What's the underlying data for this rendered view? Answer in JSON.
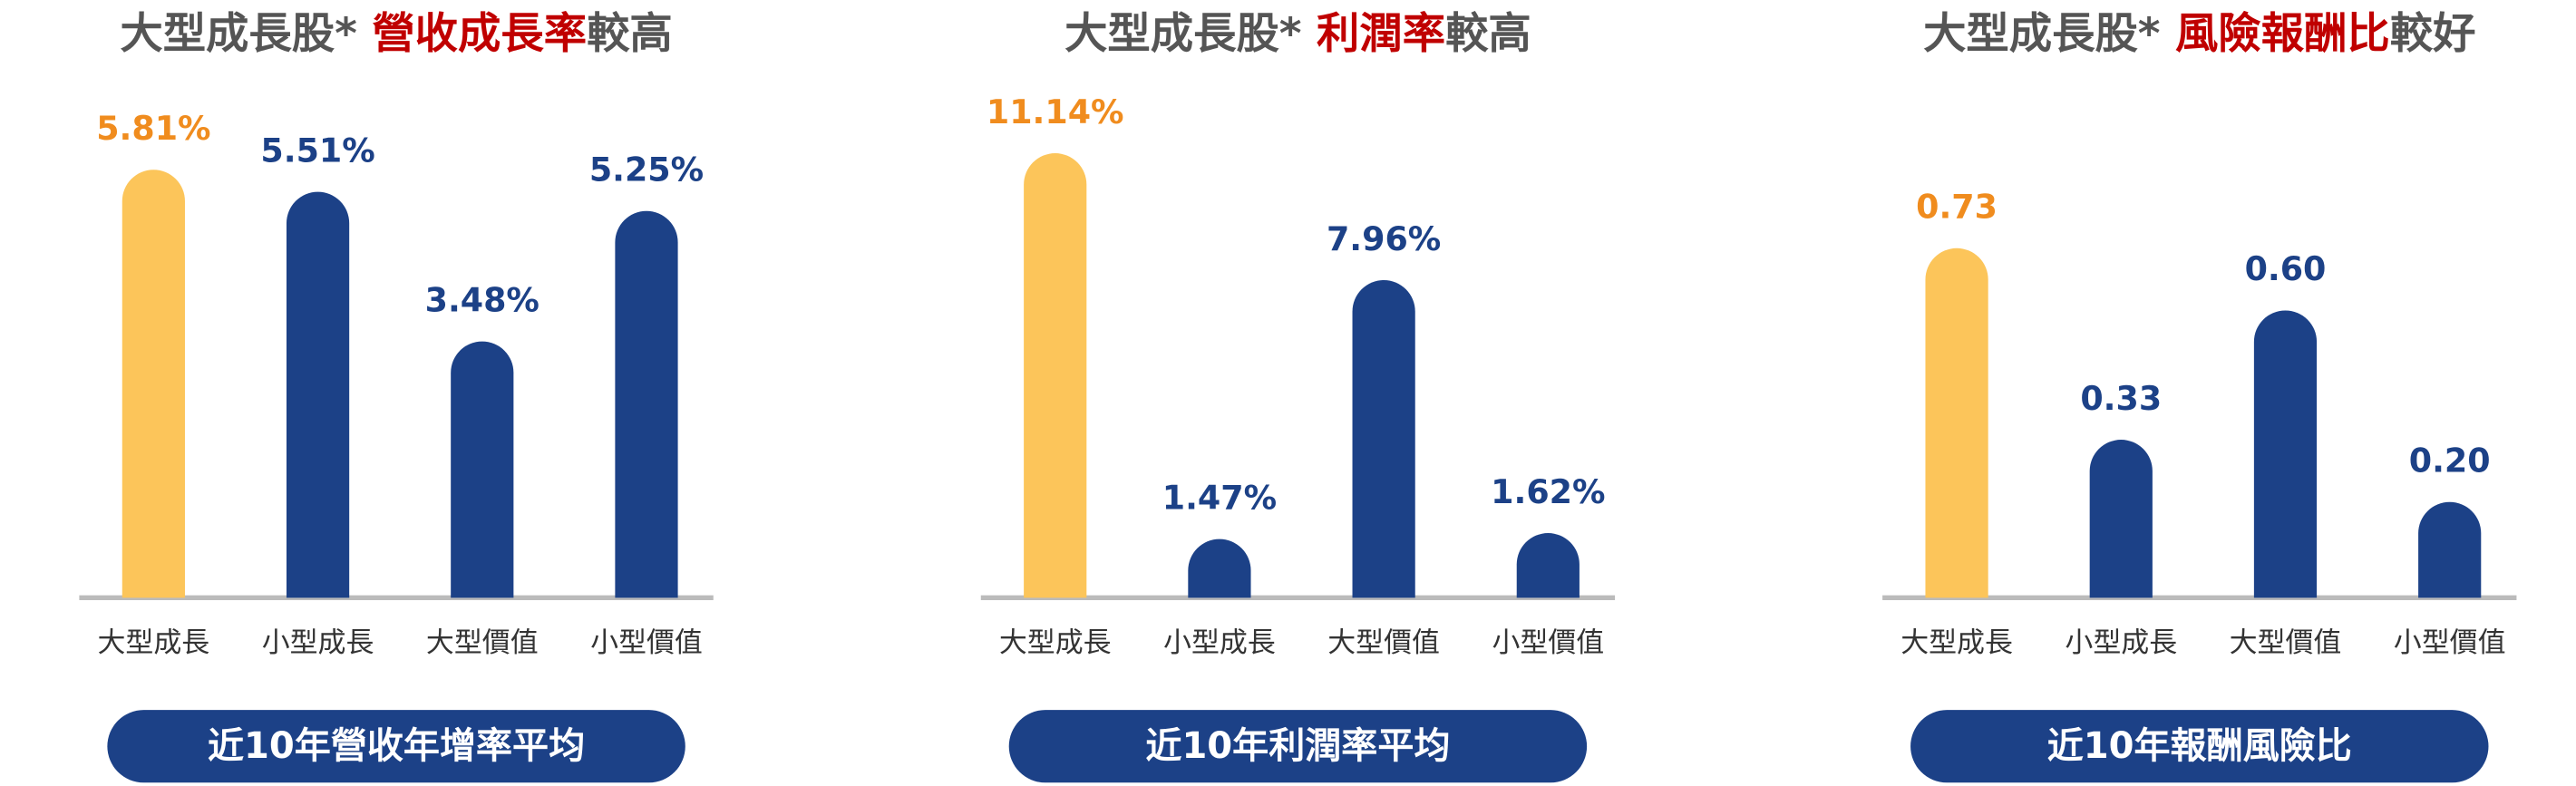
{
  "chart_data": [
    {
      "type": "bar",
      "title_parts": [
        "大型成長股* ",
        "營收成長率",
        "較高"
      ],
      "title_highlight_color": "#c00000",
      "categories": [
        "大型成長",
        "小型成長",
        "大型價值",
        "小型價值"
      ],
      "values": [
        5.81,
        5.51,
        3.48,
        5.25
      ],
      "value_labels": [
        "5.81%",
        "5.51%",
        "3.48%",
        "5.25%"
      ],
      "colors": [
        "#fcc55a",
        "#1c4187",
        "#1c4187",
        "#1c4187"
      ],
      "label_colors": [
        "#f08c1e",
        "#1c4187",
        "#1c4187",
        "#1c4187"
      ],
      "ylim": [
        0,
        6.5
      ],
      "caption": "近10年營收年增率平均",
      "caption_color": "#1c4187"
    },
    {
      "type": "bar",
      "title_parts": [
        "大型成長股* ",
        "利潤率",
        "較高"
      ],
      "title_highlight_color": "#c00000",
      "categories": [
        "大型成長",
        "小型成長",
        "大型價值",
        "小型價值"
      ],
      "values": [
        11.14,
        1.47,
        7.96,
        1.62
      ],
      "value_labels": [
        "11.14%",
        "1.47%",
        "7.96%",
        "1.62%"
      ],
      "colors": [
        "#fcc55a",
        "#1c4187",
        "#1c4187",
        "#1c4187"
      ],
      "label_colors": [
        "#f08c1e",
        "#1c4187",
        "#1c4187",
        "#1c4187"
      ],
      "ylim": [
        0,
        12
      ],
      "caption": "近10年利潤率平均",
      "caption_color": "#1c4187"
    },
    {
      "type": "bar",
      "title_parts": [
        "大型成長股* ",
        "風險報酬比",
        "較好"
      ],
      "title_highlight_color": "#c00000",
      "categories": [
        "大型成長",
        "小型成長",
        "大型價值",
        "小型價值"
      ],
      "values": [
        0.73,
        0.33,
        0.6,
        0.2
      ],
      "value_labels": [
        "0.73",
        "0.33",
        "0.60",
        "0.20"
      ],
      "colors": [
        "#fcc55a",
        "#1c4187",
        "#1c4187",
        "#1c4187"
      ],
      "label_colors": [
        "#f08c1e",
        "#1c4187",
        "#1c4187",
        "#1c4187"
      ],
      "ylim": [
        0,
        1
      ],
      "caption": "近10年報酬風險比",
      "caption_color": "#1c4187"
    }
  ]
}
